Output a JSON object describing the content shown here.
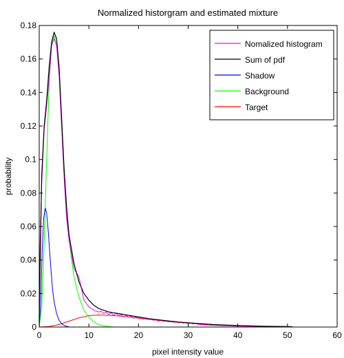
{
  "chart_data": {
    "type": "line",
    "title": "Normalized historgram and estimated mixture",
    "xlabel": "pixel intensity value",
    "ylabel": "probability",
    "xlim": [
      0,
      60
    ],
    "ylim": [
      0,
      0.18
    ],
    "xticks": [
      0,
      10,
      20,
      30,
      40,
      50,
      60
    ],
    "yticks": [
      0,
      0.02,
      0.04,
      0.06,
      0.08,
      0.1,
      0.12,
      0.14,
      0.16,
      0.18
    ],
    "grid": false,
    "legend_position": "top-right",
    "series": [
      {
        "name": "Nomalized histogram",
        "color": "#ff00ff",
        "x": [
          0,
          0.5,
          1,
          1.5,
          2,
          2.5,
          3,
          3.5,
          4,
          4.5,
          5,
          5.5,
          6,
          7,
          8,
          9,
          10,
          11,
          12,
          12.5,
          13,
          13.5,
          14,
          14.5,
          15,
          15.5,
          16,
          16.5,
          17,
          17.5,
          18,
          18.5,
          19,
          19.5,
          20,
          20.5,
          21,
          21.5,
          22,
          22.5,
          23,
          23.5,
          24,
          24.5,
          25,
          25.5,
          26,
          26.5,
          27,
          27.5,
          28,
          28.5,
          29,
          29.5,
          30,
          30.5,
          31,
          31.5,
          32,
          33,
          34,
          35,
          36,
          37,
          38,
          39,
          40,
          45,
          51
        ],
        "y": [
          0.03,
          0.085,
          0.118,
          0.132,
          0.148,
          0.168,
          0.172,
          0.168,
          0.15,
          0.12,
          0.09,
          0.065,
          0.052,
          0.035,
          0.03,
          0.016,
          0.012,
          0.01,
          0.009,
          0.0095,
          0.008,
          0.009,
          0.0075,
          0.0085,
          0.007,
          0.0082,
          0.0068,
          0.0075,
          0.006,
          0.0072,
          0.0058,
          0.0066,
          0.0052,
          0.0062,
          0.005,
          0.0058,
          0.0046,
          0.0055,
          0.0044,
          0.005,
          0.004,
          0.0046,
          0.0035,
          0.0042,
          0.0033,
          0.0038,
          0.003,
          0.0035,
          0.0028,
          0.0032,
          0.0025,
          0.003,
          0.0022,
          0.0028,
          0.002,
          0.0025,
          0.0018,
          0.0022,
          0.0016,
          0.0014,
          0.0012,
          0.001,
          0.0009,
          0.0008,
          0.0007,
          0.0006,
          0.0005,
          0.0003,
          0.0002
        ]
      },
      {
        "name": "Sum of pdf",
        "color": "#000000",
        "x": [
          0,
          0.5,
          1,
          1.5,
          2,
          2.5,
          3,
          3.5,
          4,
          4.5,
          5,
          5.5,
          6,
          7,
          8,
          9,
          10,
          11,
          12,
          13,
          14,
          15,
          16,
          18,
          20,
          22,
          25,
          28,
          30,
          35,
          40,
          45,
          51
        ],
        "y": [
          0.005,
          0.09,
          0.12,
          0.135,
          0.155,
          0.17,
          0.176,
          0.172,
          0.155,
          0.125,
          0.095,
          0.072,
          0.055,
          0.038,
          0.027,
          0.02,
          0.016,
          0.013,
          0.011,
          0.01,
          0.009,
          0.0085,
          0.008,
          0.007,
          0.006,
          0.005,
          0.004,
          0.003,
          0.0025,
          0.0015,
          0.0009,
          0.0005,
          0.0002
        ]
      },
      {
        "name": "Shadow",
        "color": "#0000ff",
        "x": [
          0,
          0.3,
          0.6,
          0.9,
          1.2,
          1.5,
          1.8,
          2.1,
          2.4,
          2.7,
          3,
          3.5,
          4,
          4.5,
          5,
          6
        ],
        "y": [
          0.0,
          0.015,
          0.045,
          0.065,
          0.071,
          0.068,
          0.058,
          0.045,
          0.033,
          0.022,
          0.015,
          0.008,
          0.004,
          0.002,
          0.001,
          0.0
        ]
      },
      {
        "name": "Background",
        "color": "#00ff00",
        "x": [
          0,
          0.5,
          1,
          1.5,
          2,
          2.5,
          3,
          3.5,
          4,
          4.5,
          5,
          5.5,
          6,
          7,
          8,
          9,
          10,
          11,
          12,
          13,
          14,
          15
        ],
        "y": [
          0.0,
          0.012,
          0.05,
          0.1,
          0.145,
          0.168,
          0.174,
          0.168,
          0.152,
          0.125,
          0.095,
          0.07,
          0.052,
          0.03,
          0.018,
          0.01,
          0.006,
          0.003,
          0.0015,
          0.0007,
          0.0003,
          0.0
        ]
      },
      {
        "name": "Target",
        "color": "#ff0000",
        "x": [
          0,
          2,
          4,
          6,
          8,
          10,
          12,
          14,
          16,
          18,
          20,
          22,
          25,
          28,
          30,
          35,
          40,
          45,
          51
        ],
        "y": [
          0.0,
          0.0003,
          0.0015,
          0.0035,
          0.0055,
          0.0068,
          0.0072,
          0.007,
          0.0066,
          0.006,
          0.0053,
          0.0046,
          0.0036,
          0.0028,
          0.0023,
          0.0014,
          0.0008,
          0.0004,
          0.0002
        ]
      }
    ]
  }
}
